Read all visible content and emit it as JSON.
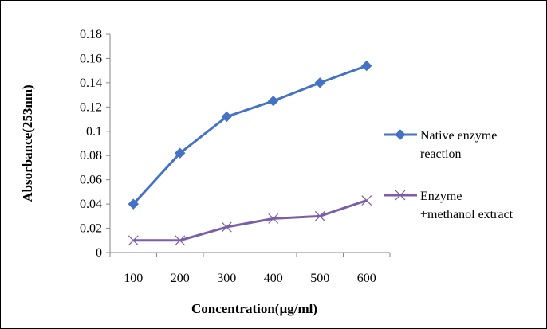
{
  "chart_data": {
    "type": "line",
    "title": "",
    "xlabel": "Concentration(µg/ml)",
    "ylabel": "Absorbance(253nm)",
    "categories": [
      "100",
      "200",
      "300",
      "400",
      "500",
      "600"
    ],
    "ylim": [
      0,
      0.18
    ],
    "yticks": [
      "0",
      "0.02",
      "0.04",
      "0.06",
      "0.08",
      "0.1",
      "0.12",
      "0.14",
      "0.16",
      "0.18"
    ],
    "grid": false,
    "legend_position": "right",
    "series": [
      {
        "name": "Native enzyme reaction",
        "legend_lines": [
          "Native enzyme",
          "reaction"
        ],
        "values": [
          0.04,
          0.082,
          0.112,
          0.125,
          0.14,
          0.154
        ],
        "color": "#4472C4",
        "marker": "diamond"
      },
      {
        "name": "Enzyme +methanol extract",
        "legend_lines": [
          "Enzyme",
          "+methanol extract"
        ],
        "values": [
          0.01,
          0.01,
          0.021,
          0.028,
          0.03,
          0.043
        ],
        "color": "#7B5DA8",
        "marker": "x"
      }
    ]
  }
}
